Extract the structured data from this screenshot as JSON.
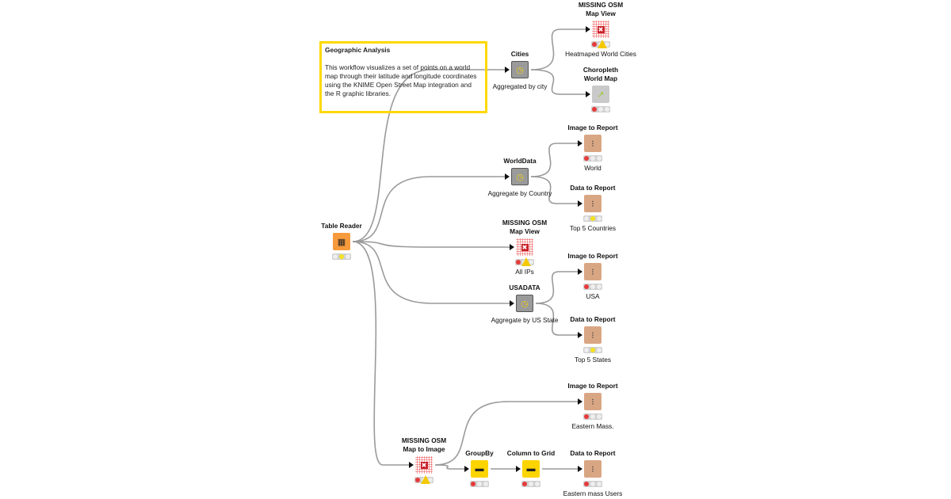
{
  "annotation": {
    "title": "Geographic Analysis",
    "body": "This workflow visualizes a set of points on a world map through their latitude and longitude coordinates using the KNIME Open Street Map integration and the R graphic libraries.",
    "border_color": "#ffd800"
  },
  "nodes": [
    {
      "id": "reader",
      "title": "Table Reader",
      "label": "",
      "kind": "reader",
      "icon": "table-reader-icon",
      "status": "yellow"
    },
    {
      "id": "cities",
      "title": "Cities",
      "label": "Aggregated by city",
      "kind": "meta",
      "icon": "metanode-clock-icon",
      "status": "none"
    },
    {
      "id": "heat",
      "title": "MISSING OSM\nMap View",
      "label": "Heatmaped World Cities",
      "kind": "osm",
      "icon": "missing-node-icon",
      "status": "warning"
    },
    {
      "id": "choro",
      "title": "Choropleth\nWorld Map",
      "label": "",
      "kind": "blank",
      "icon": "r-view-icon",
      "status": "red"
    },
    {
      "id": "world",
      "title": "WorldData",
      "label": "Aggregate by Country",
      "kind": "meta",
      "icon": "metanode-clock-icon",
      "status": "none"
    },
    {
      "id": "img1",
      "title": "Image to Report",
      "label": "World",
      "kind": "report",
      "icon": "image-to-report-icon",
      "status": "red"
    },
    {
      "id": "dat1",
      "title": "Data to Report",
      "label": "Top 5 Countries",
      "kind": "report",
      "icon": "data-to-report-icon",
      "status": "yellow-mid"
    },
    {
      "id": "allips",
      "title": "MISSING OSM\nMap View",
      "label": "All IPs",
      "kind": "osm",
      "icon": "missing-node-icon",
      "status": "warning"
    },
    {
      "id": "img2",
      "title": "Image to Report",
      "label": "USA",
      "kind": "report",
      "icon": "image-to-report-icon",
      "status": "red"
    },
    {
      "id": "usa",
      "title": "USADATA",
      "label": "Aggregate by US State",
      "kind": "meta",
      "icon": "metanode-clock-icon",
      "status": "none"
    },
    {
      "id": "dat2",
      "title": "Data to Report",
      "label": "Top 5 States",
      "kind": "report",
      "icon": "data-to-report-icon",
      "status": "yellow-mid"
    },
    {
      "id": "img3",
      "title": "Image to Report",
      "label": "Eastern Mass.",
      "kind": "report",
      "icon": "image-to-report-icon",
      "status": "red"
    },
    {
      "id": "osmimg",
      "title": "MISSING OSM\nMap to Image",
      "label": "",
      "kind": "osm",
      "icon": "missing-node-icon",
      "status": "warning"
    },
    {
      "id": "groupby",
      "title": "GroupBy",
      "label": "",
      "kind": "yellow",
      "icon": "groupby-icon",
      "status": "red"
    },
    {
      "id": "col2grid",
      "title": "Column to Grid",
      "label": "",
      "kind": "yellow",
      "icon": "column-to-grid-icon",
      "status": "red"
    },
    {
      "id": "dat3",
      "title": "Data to Report",
      "label": "Eastern mass Users",
      "kind": "report",
      "icon": "data-to-report-icon",
      "status": "red"
    }
  ],
  "edges": [
    [
      "reader",
      "cities"
    ],
    [
      "reader",
      "world"
    ],
    [
      "reader",
      "allips"
    ],
    [
      "reader",
      "usa"
    ],
    [
      "reader",
      "osmimg"
    ],
    [
      "cities",
      "heat"
    ],
    [
      "cities",
      "choro"
    ],
    [
      "world",
      "img1"
    ],
    [
      "world",
      "dat1"
    ],
    [
      "usa",
      "img2"
    ],
    [
      "usa",
      "dat2"
    ],
    [
      "osmimg",
      "img3"
    ],
    [
      "osmimg",
      "groupby"
    ],
    [
      "groupby",
      "col2grid"
    ],
    [
      "col2grid",
      "dat3"
    ]
  ]
}
